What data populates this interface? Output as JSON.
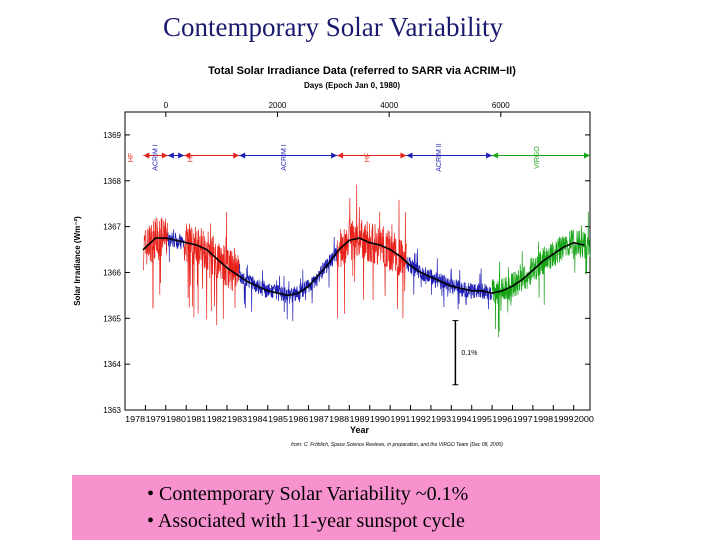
{
  "slide": {
    "title": "Contemporary Solar Variability",
    "bullets": [
      "• Contemporary Solar Variability ~0.1%",
      "• Associated with 11-year sunspot cycle"
    ]
  },
  "chart_data": {
    "type": "line",
    "title": "Total Solar Irradiance Data (referred to SARR via ACRIM−II)",
    "top_axis_label": "Days (Epoch Jan 0, 1980)",
    "top_ticks": [
      0,
      2000,
      4000,
      6000
    ],
    "ylabel": "Solar Irradiance (Wm⁻²)",
    "xlabel": "Year",
    "ylim": [
      1363,
      1369.5
    ],
    "y_ticks": [
      1363,
      1364,
      1365,
      1366,
      1367,
      1368,
      1369
    ],
    "xlim": [
      1978,
      2000.8
    ],
    "x_ticks": [
      1978,
      1979,
      1980,
      1981,
      1982,
      1983,
      1984,
      1985,
      1986,
      1987,
      1988,
      1989,
      1990,
      1991,
      1992,
      1993,
      1994,
      1995,
      1996,
      1997,
      1998,
      1999,
      2000
    ],
    "scale_bar_label": "0.1%",
    "credit": "from: C. Fröhlich, Space Science Reviews, in preparation, and the VIRGO Team (Dec 08, 2000)",
    "colors": {
      "HF": "#e8231c",
      "ACRIM I": "#1f1fb4",
      "ACRIM II": "#1f1fb4",
      "VIRGO": "#16a316",
      "composite": "#000000"
    },
    "instrument_spans": [
      {
        "name": "HF",
        "start": 1978.9,
        "end": 1980.1
      },
      {
        "name": "ACRIM I",
        "start": 1980.1,
        "end": 1980.9
      },
      {
        "name": "HF",
        "start": 1980.9,
        "end": 1983.6
      },
      {
        "name": "ACRIM I",
        "start": 1983.6,
        "end": 1988.4
      },
      {
        "name": "HF",
        "start": 1988.4,
        "end": 1991.8
      },
      {
        "name": "ACRIM II",
        "start": 1991.8,
        "end": 1996.0
      },
      {
        "name": "VIRGO",
        "start": 1996.0,
        "end": 2000.8
      }
    ],
    "instrument_labels": [
      {
        "label": "HF",
        "year": 1978.4
      },
      {
        "label": "ACRIM I",
        "year": 1979.6
      },
      {
        "label": "HF",
        "year": 1981.3
      },
      {
        "label": "ACRIM I",
        "year": 1985.9
      },
      {
        "label": "HF",
        "year": 1990.0
      },
      {
        "label": "ACRIM II",
        "year": 1993.5
      },
      {
        "label": "VIRGO",
        "year": 1998.3
      }
    ],
    "composite": {
      "years": [
        1978.9,
        1979.5,
        1980.0,
        1980.5,
        1981.0,
        1981.5,
        1982.0,
        1982.5,
        1983.0,
        1983.5,
        1984.0,
        1984.5,
        1985.0,
        1985.5,
        1986.0,
        1986.5,
        1987.0,
        1987.5,
        1988.0,
        1988.5,
        1989.0,
        1989.5,
        1990.0,
        1990.5,
        1991.0,
        1991.5,
        1992.0,
        1992.5,
        1993.0,
        1993.5,
        1994.0,
        1994.5,
        1995.0,
        1995.5,
        1996.0,
        1996.5,
        1997.0,
        1997.5,
        1998.0,
        1998.5,
        1999.0,
        1999.5,
        2000.0,
        2000.5
      ],
      "values": [
        1366.5,
        1366.75,
        1366.75,
        1366.7,
        1366.65,
        1366.6,
        1366.5,
        1366.3,
        1366.1,
        1365.95,
        1365.8,
        1365.7,
        1365.6,
        1365.55,
        1365.5,
        1365.55,
        1365.7,
        1365.95,
        1366.2,
        1366.5,
        1366.7,
        1366.75,
        1366.65,
        1366.6,
        1366.5,
        1366.35,
        1366.15,
        1366.0,
        1365.9,
        1365.8,
        1365.7,
        1365.65,
        1365.6,
        1365.6,
        1365.55,
        1365.6,
        1365.7,
        1365.85,
        1366.05,
        1366.25,
        1366.4,
        1366.55,
        1366.65,
        1366.6
      ]
    }
  }
}
